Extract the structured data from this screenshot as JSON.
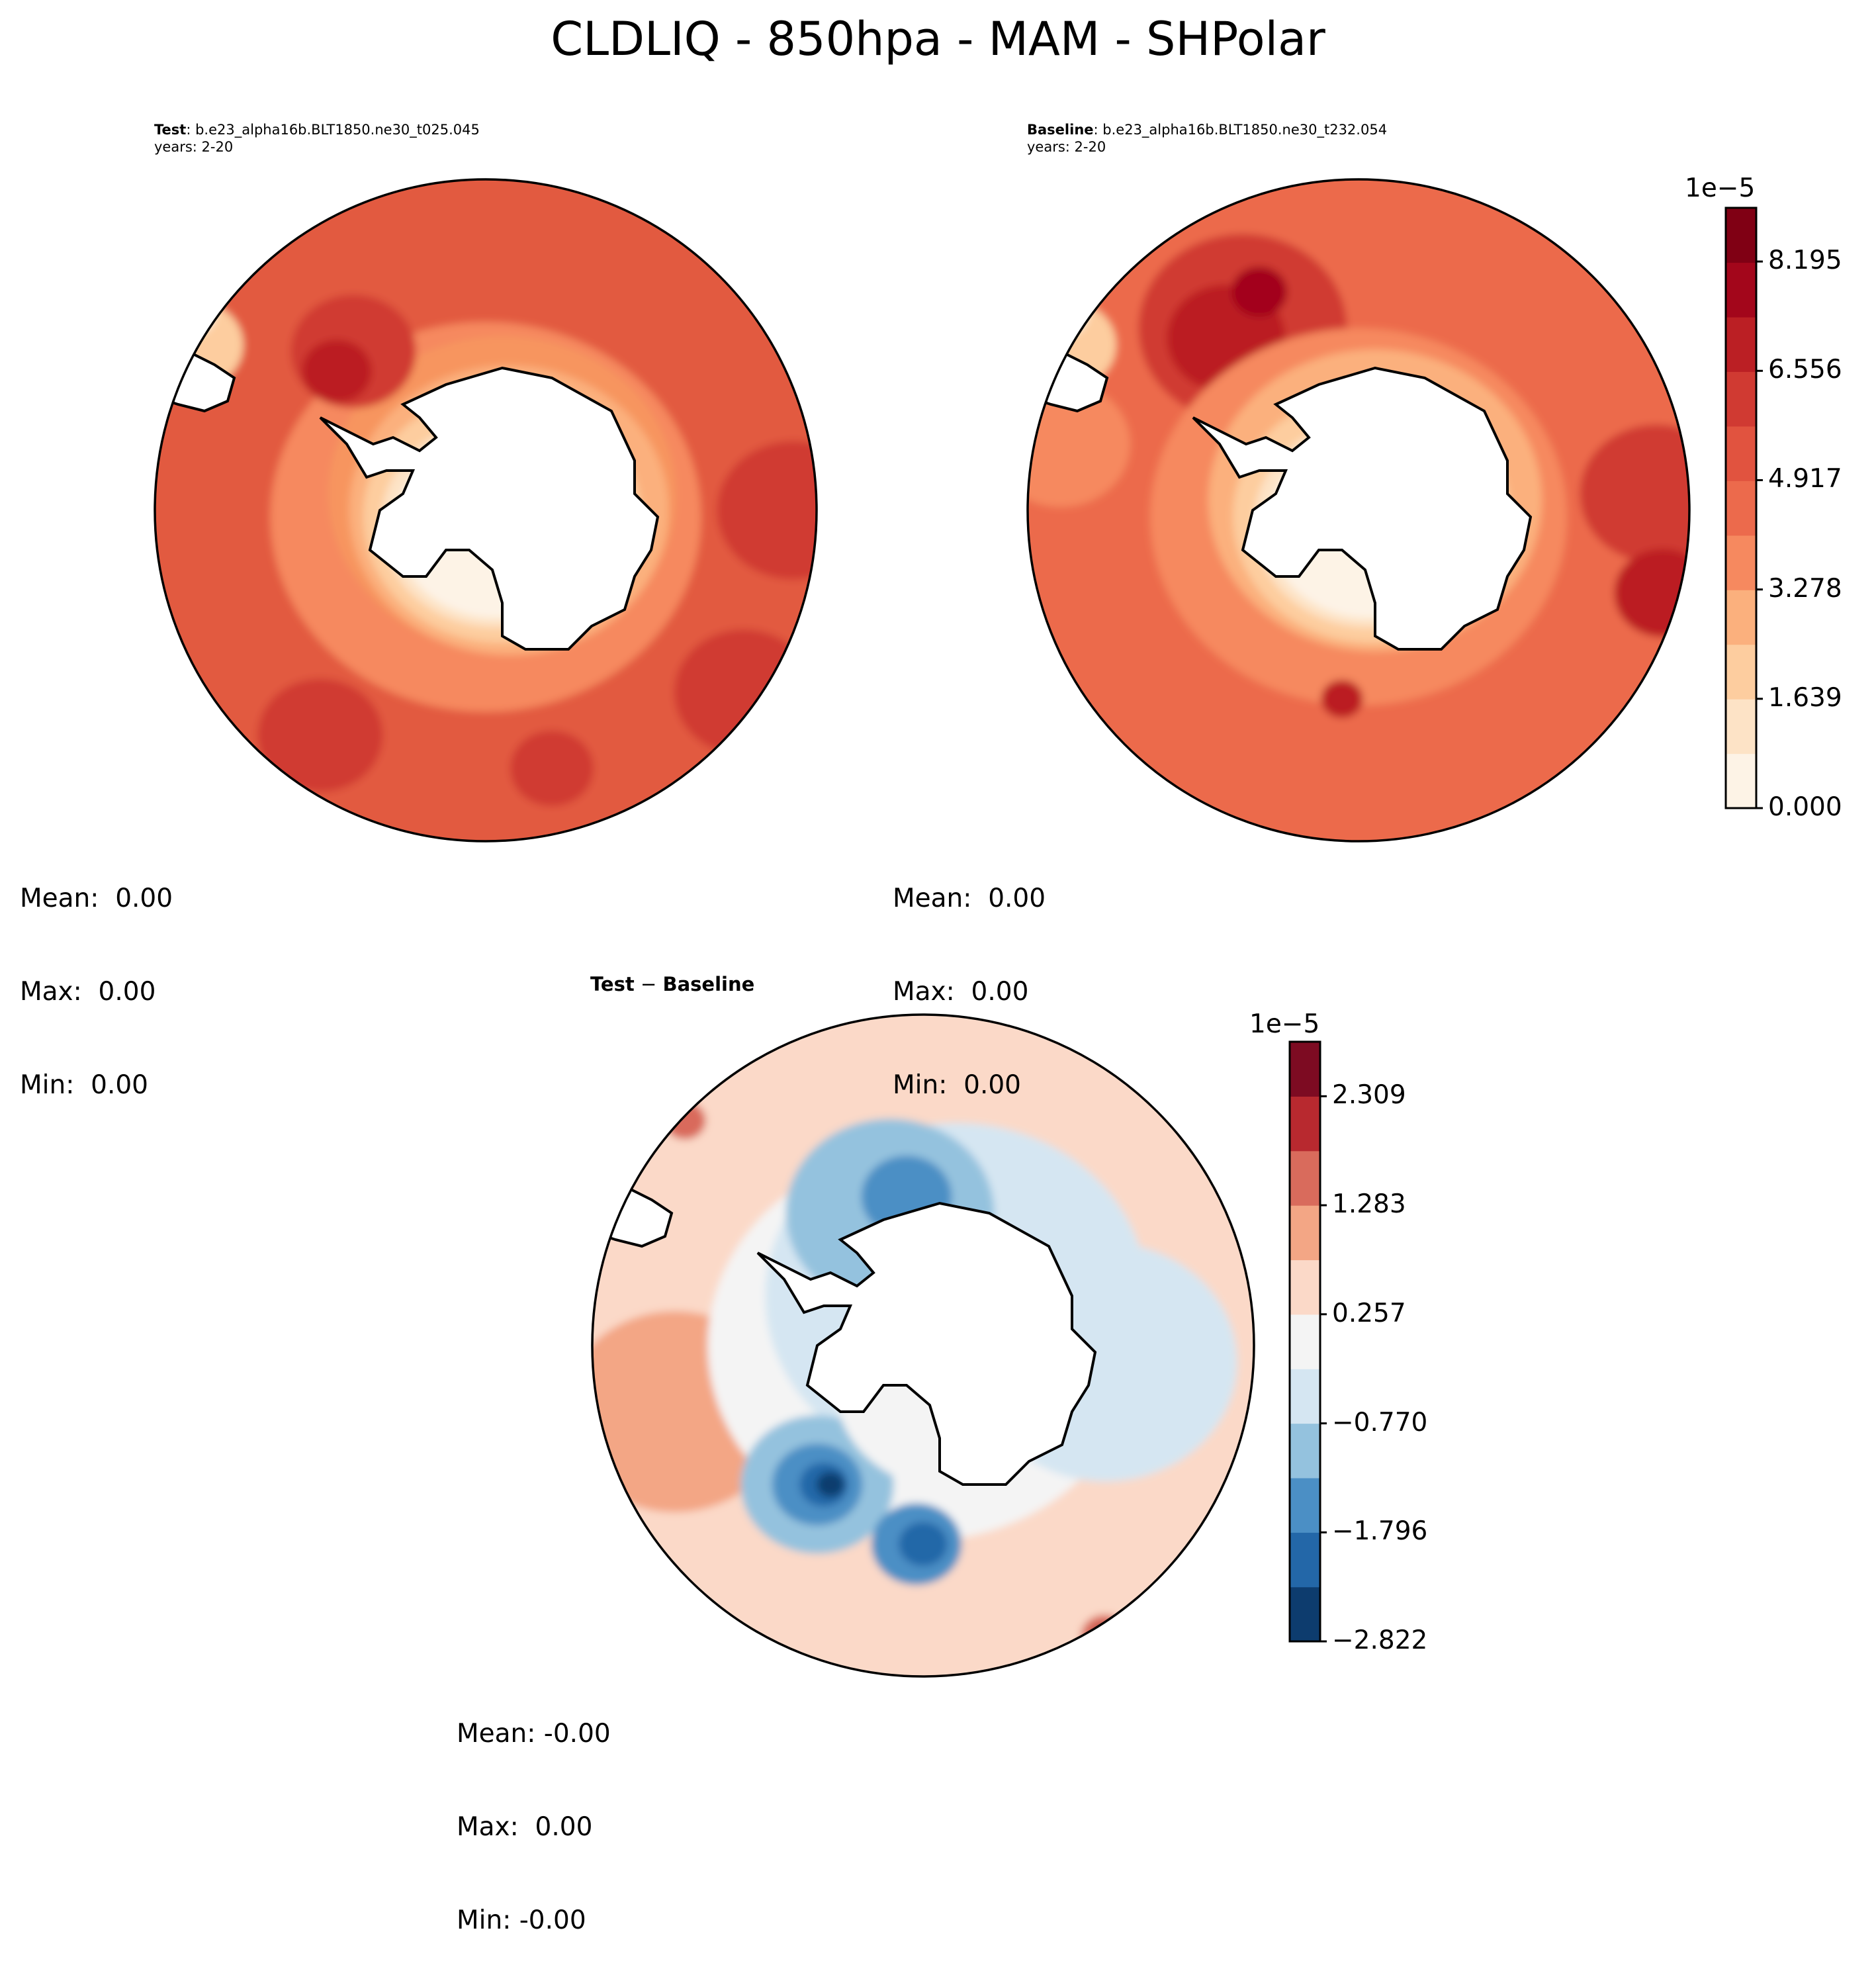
{
  "figure": {
    "title": "CLDLIQ - 850hpa - MAM - SHPolar"
  },
  "panels": {
    "test": {
      "label": "Test",
      "case": "b.e23_alpha16b.BLT1850.ne30_t025.045",
      "years": "years: 2-20",
      "stats": {
        "mean": "Mean:  0.00",
        "max": "Max:  0.00",
        "min": "Min:  0.00"
      }
    },
    "baseline": {
      "label": "Baseline",
      "case": "b.e23_alpha16b.BLT1850.ne30_t232.054",
      "years": "years: 2-20",
      "stats": {
        "mean": "Mean:  0.00",
        "max": "Max:  0.00",
        "min": "Min:  0.00"
      }
    },
    "diff": {
      "label_a": "Test",
      "minus": "−",
      "label_b": "Baseline",
      "stats": {
        "mean": "Mean: -0.00",
        "max": "Max:  0.00",
        "min": "Min: -0.00"
      }
    }
  },
  "chart_data": [
    {
      "type": "heatmap",
      "name": "Test / Baseline colorbar",
      "projection": "south polar stereographic",
      "scale_label": "1e−5",
      "vmin": 0.0,
      "vmax": 9.0,
      "levels": 11,
      "tick_values": [
        0.0,
        1.639,
        3.278,
        4.917,
        6.556,
        8.195
      ],
      "tick_labels": [
        "0.000",
        "1.639",
        "3.278",
        "4.917",
        "6.556",
        "8.195"
      ],
      "colors": [
        "#fdf3e6",
        "#fde3c6",
        "#fdcd9f",
        "#fbb07d",
        "#f6895f",
        "#ec6a4c",
        "#e1533f",
        "#d03a32",
        "#bb1f24",
        "#a3061b",
        "#800014"
      ]
    },
    {
      "type": "heatmap",
      "name": "Test - Baseline colorbar",
      "projection": "south polar stereographic",
      "scale_label": "1e−5",
      "vmin": -2.822,
      "vmax": 2.822,
      "levels": 11,
      "tick_values": [
        -2.822,
        -1.796,
        -0.77,
        0.257,
        1.283,
        2.309
      ],
      "tick_labels": [
        "−2.822",
        "−1.796",
        "−0.770",
        "0.257",
        "1.283",
        "2.309"
      ],
      "colors": [
        "#0d3c6e",
        "#2367a8",
        "#4b8fc5",
        "#94c2de",
        "#d5e6f2",
        "#f4f4f4",
        "#fbd9c8",
        "#f3a685",
        "#d96b5c",
        "#b8292f",
        "#7d0b22"
      ]
    }
  ],
  "map_fields": {
    "test": {
      "background": "#e25a41",
      "blobs": [
        {
          "dx": 0.0,
          "dy": 0.02,
          "r": 0.62,
          "c": "#f6895f"
        },
        {
          "dx": 0.05,
          "dy": -0.05,
          "r": 0.5,
          "c": "#f7955f"
        },
        {
          "dx": 0.07,
          "dy": 0.0,
          "r": 0.46,
          "c": "#fbb07d"
        },
        {
          "dx": 0.05,
          "dy": 0.02,
          "r": 0.4,
          "c": "#fdcd9f"
        },
        {
          "dx": 0.03,
          "dy": 0.04,
          "r": 0.33,
          "c": "#fde3c6"
        },
        {
          "dx": 0.03,
          "dy": 0.05,
          "r": 0.29,
          "c": "#fdf3e6"
        },
        {
          "dx": -0.4,
          "dy": -0.48,
          "r": 0.18,
          "c": "#d03a32"
        },
        {
          "dx": -0.45,
          "dy": -0.42,
          "r": 0.1,
          "c": "#bb1f24"
        },
        {
          "dx": 0.93,
          "dy": 0.0,
          "r": 0.22,
          "c": "#d03a32"
        },
        {
          "dx": 0.78,
          "dy": 0.55,
          "r": 0.2,
          "c": "#d03a32"
        },
        {
          "dx": -0.5,
          "dy": 0.68,
          "r": 0.18,
          "c": "#d03a32"
        },
        {
          "dx": 0.2,
          "dy": 0.78,
          "r": 0.12,
          "c": "#d03a32"
        },
        {
          "dx": -0.88,
          "dy": -0.5,
          "r": 0.14,
          "c": "#fdcd9f"
        },
        {
          "dx": -0.9,
          "dy": -0.6,
          "r": 0.08,
          "c": "#fdf3e6"
        }
      ]
    },
    "baseline": {
      "background": "#ec6a4c",
      "blobs": [
        {
          "dx": -0.35,
          "dy": -0.55,
          "r": 0.3,
          "c": "#d03a32"
        },
        {
          "dx": -0.4,
          "dy": -0.52,
          "r": 0.17,
          "c": "#bb1f24"
        },
        {
          "dx": -0.3,
          "dy": -0.66,
          "r": 0.08,
          "c": "#a3061b"
        },
        {
          "dx": 0.0,
          "dy": 0.02,
          "r": 0.6,
          "c": "#f6895f"
        },
        {
          "dx": 0.05,
          "dy": -0.03,
          "r": 0.48,
          "c": "#fbb07d"
        },
        {
          "dx": 0.04,
          "dy": 0.02,
          "r": 0.4,
          "c": "#fdcd9f"
        },
        {
          "dx": 0.03,
          "dy": 0.04,
          "r": 0.33,
          "c": "#fde3c6"
        },
        {
          "dx": 0.03,
          "dy": 0.05,
          "r": 0.29,
          "c": "#fdf3e6"
        },
        {
          "dx": 0.9,
          "dy": -0.05,
          "r": 0.22,
          "c": "#d03a32"
        },
        {
          "dx": 0.92,
          "dy": 0.25,
          "r": 0.14,
          "c": "#bb1f24"
        },
        {
          "dx": -0.05,
          "dy": 0.57,
          "r": 0.06,
          "c": "#bb1f24"
        },
        {
          "dx": -0.9,
          "dy": -0.2,
          "r": 0.2,
          "c": "#f6895f"
        },
        {
          "dx": -0.88,
          "dy": -0.5,
          "r": 0.14,
          "c": "#fdcd9f"
        },
        {
          "dx": -0.9,
          "dy": -0.6,
          "r": 0.08,
          "c": "#fdf3e6"
        }
      ]
    },
    "diff": {
      "background": "#fbd9c8",
      "blobs": [
        {
          "dx": -0.75,
          "dy": 0.2,
          "r": 0.32,
          "c": "#f3a685"
        },
        {
          "dx": 0.0,
          "dy": 0.0,
          "r": 0.62,
          "c": "#f4f4f4"
        },
        {
          "dx": 0.1,
          "dy": -0.15,
          "r": 0.55,
          "c": "#d5e6f2"
        },
        {
          "dx": 0.55,
          "dy": 0.05,
          "r": 0.38,
          "c": "#d5e6f2"
        },
        {
          "dx": -0.1,
          "dy": -0.4,
          "r": 0.3,
          "c": "#94c2de"
        },
        {
          "dx": -0.32,
          "dy": 0.42,
          "r": 0.22,
          "c": "#94c2de"
        },
        {
          "dx": -0.05,
          "dy": -0.45,
          "r": 0.13,
          "c": "#4b8fc5"
        },
        {
          "dx": -0.32,
          "dy": 0.42,
          "r": 0.13,
          "c": "#4b8fc5"
        },
        {
          "dx": -0.02,
          "dy": 0.6,
          "r": 0.13,
          "c": "#4b8fc5"
        },
        {
          "dx": -0.3,
          "dy": 0.42,
          "r": 0.07,
          "c": "#2367a8"
        },
        {
          "dx": 0.0,
          "dy": 0.6,
          "r": 0.07,
          "c": "#2367a8"
        },
        {
          "dx": -0.28,
          "dy": 0.42,
          "r": 0.04,
          "c": "#0d3c6e"
        },
        {
          "dx": 0.55,
          "dy": 0.88,
          "r": 0.07,
          "c": "#d96b5c"
        },
        {
          "dx": 0.55,
          "dy": 0.88,
          "r": 0.035,
          "c": "#7d0b22"
        },
        {
          "dx": -0.72,
          "dy": -0.68,
          "r": 0.06,
          "c": "#d96b5c"
        },
        {
          "dx": 0.08,
          "dy": 0.12,
          "r": 0.33,
          "c": "#f4f4f4"
        }
      ]
    }
  }
}
